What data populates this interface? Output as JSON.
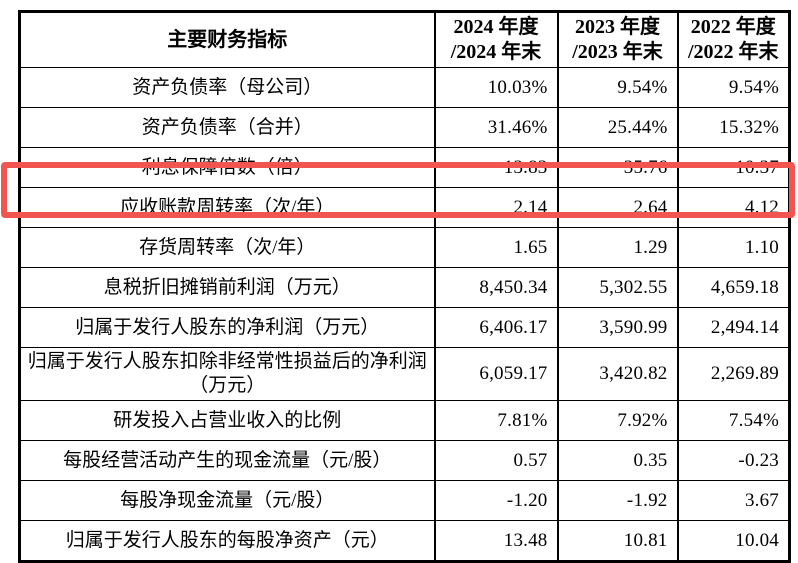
{
  "page": {
    "background_color": "#ffffff",
    "text_color": "#000000",
    "border_color": "#000000"
  },
  "table": {
    "header": {
      "indicator": "主要财务指标",
      "periods": [
        "2024 年度\n/2024 年末",
        "2023 年度\n/2023 年末",
        "2022 年度\n/2022 年末"
      ]
    },
    "rows": [
      {
        "label": "资产负债率（母公司）",
        "values": [
          "10.03%",
          "9.54%",
          "9.54%"
        ],
        "highlighted": false
      },
      {
        "label": "资产负债率（合并）",
        "values": [
          "31.46%",
          "25.44%",
          "15.32%"
        ],
        "highlighted": false
      },
      {
        "label": "利息保障倍数（倍）",
        "values": [
          "13.83",
          "35.76",
          "10.37"
        ],
        "highlighted": false
      },
      {
        "label": "应收账款周转率（次/年）",
        "values": [
          "2.14",
          "2.64",
          "4.12"
        ],
        "highlighted": true
      },
      {
        "label": "存货周转率（次/年）",
        "values": [
          "1.65",
          "1.29",
          "1.10"
        ],
        "highlighted": false
      },
      {
        "label": "息税折旧摊销前利润（万元）",
        "values": [
          "8,450.34",
          "5,302.55",
          "4,659.18"
        ],
        "highlighted": false
      },
      {
        "label": "归属于发行人股东的净利润（万元）",
        "values": [
          "6,406.17",
          "3,590.99",
          "2,494.14"
        ],
        "highlighted": false
      },
      {
        "label": "归属于发行人股东扣除非经常性损益后的净利润\n（万元）",
        "values": [
          "6,059.17",
          "3,420.82",
          "2,269.89"
        ],
        "highlighted": false
      },
      {
        "label": "研发投入占营业收入的比例",
        "values": [
          "7.81%",
          "7.92%",
          "7.54%"
        ],
        "highlighted": false
      },
      {
        "label": "每股经营活动产生的现金流量（元/股）",
        "values": [
          "0.57",
          "0.35",
          "-0.23"
        ],
        "highlighted": false
      },
      {
        "label": "每股净现金流量（元/股）",
        "values": [
          "-1.20",
          "-1.92",
          "3.67"
        ],
        "highlighted": false
      },
      {
        "label": "归属于发行人股东的每股净资产（元）",
        "values": [
          "13.48",
          "10.81",
          "10.04"
        ],
        "highlighted": false
      }
    ]
  },
  "annotation": {
    "type": "red-highlight-box",
    "color": "#f2554f",
    "highlighted_row_label": "应收账款周转率（次/年）",
    "highlighted_row_values": [
      "2.14",
      "2.64",
      "4.12"
    ]
  }
}
